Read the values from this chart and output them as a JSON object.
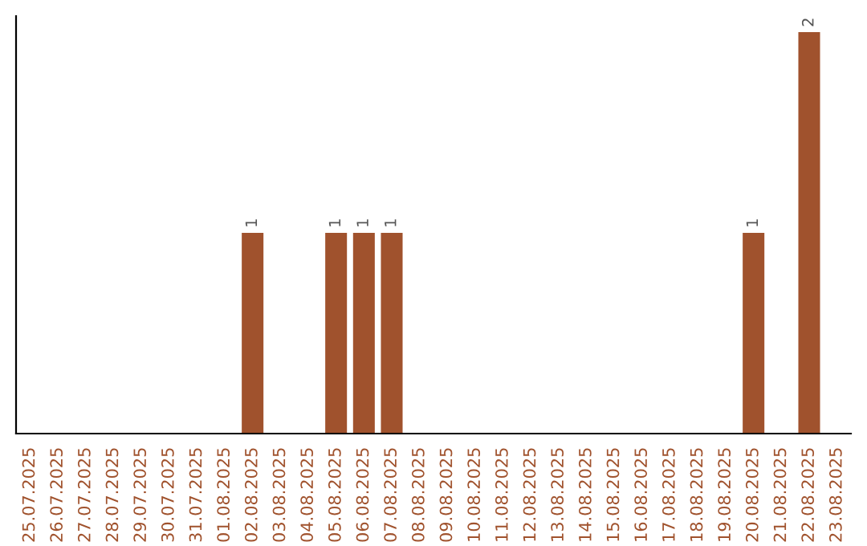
{
  "chart_data": {
    "type": "bar",
    "categories": [
      "25.07.2025",
      "26.07.2025",
      "27.07.2025",
      "28.07.2025",
      "29.07.2025",
      "30.07.2025",
      "31.07.2025",
      "01.08.2025",
      "02.08.2025",
      "03.08.2025",
      "04.08.2025",
      "05.08.2025",
      "06.08.2025",
      "07.08.2025",
      "08.08.2025",
      "09.08.2025",
      "10.08.2025",
      "11.08.2025",
      "12.08.2025",
      "13.08.2025",
      "14.08.2025",
      "15.08.2025",
      "16.08.2025",
      "17.08.2025",
      "18.08.2025",
      "19.08.2025",
      "20.08.2025",
      "21.08.2025",
      "22.08.2025",
      "23.08.2025"
    ],
    "values": [
      0,
      0,
      0,
      0,
      0,
      0,
      0,
      0,
      1,
      0,
      0,
      1,
      1,
      1,
      0,
      0,
      0,
      0,
      0,
      0,
      0,
      0,
      0,
      0,
      0,
      0,
      1,
      0,
      2,
      0
    ],
    "color": "#a0522d",
    "value_labels": [
      null,
      null,
      null,
      null,
      null,
      null,
      null,
      null,
      "1",
      null,
      null,
      "1",
      "1",
      "1",
      null,
      null,
      null,
      null,
      null,
      null,
      null,
      null,
      null,
      null,
      null,
      null,
      "1",
      null,
      "2",
      null
    ],
    "grid": false,
    "legend": false
  }
}
